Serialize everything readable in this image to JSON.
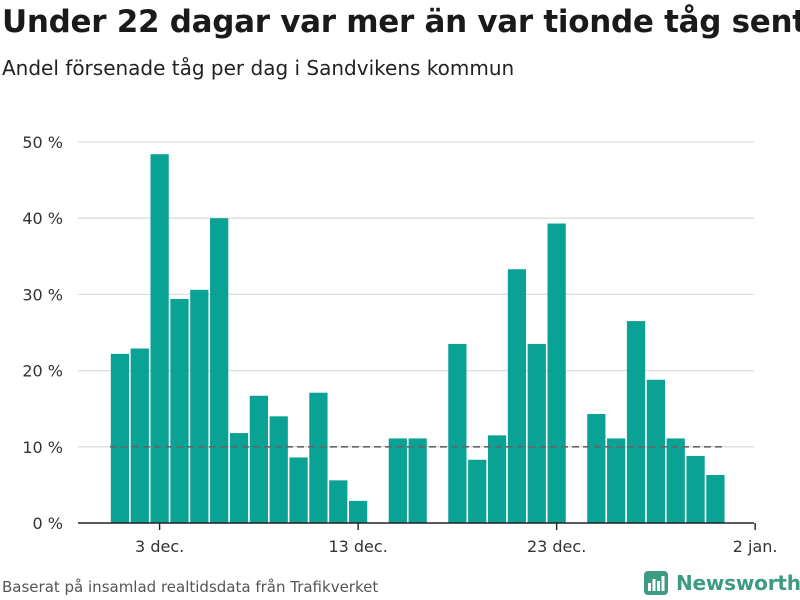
{
  "title": "Under 22 dagar var mer än var tionde tåg sent",
  "subtitle": "Andel försenade tåg per dag i Sandvikens kommun",
  "footer": {
    "source": "Baserat på insamlad realtidsdata från Trafikverket",
    "brand": "Newsworthy",
    "brand_icon": "bar-chart-logo-icon"
  },
  "colors": {
    "bar": "#0aa295",
    "reference_line": "#666666",
    "grid": "#dddddd",
    "brand": "#3d9b84"
  },
  "chart_data": {
    "type": "bar",
    "x": [
      "2018-12-01",
      "2018-12-02",
      "2018-12-03",
      "2018-12-04",
      "2018-12-05",
      "2018-12-06",
      "2018-12-07",
      "2018-12-08",
      "2018-12-09",
      "2018-12-10",
      "2018-12-11",
      "2018-12-12",
      "2018-12-13",
      "2018-12-14",
      "2018-12-15",
      "2018-12-16",
      "2018-12-17",
      "2018-12-18",
      "2018-12-19",
      "2018-12-20",
      "2018-12-21",
      "2018-12-22",
      "2018-12-23",
      "2018-12-24",
      "2018-12-25",
      "2018-12-26",
      "2018-12-27",
      "2018-12-28",
      "2018-12-29",
      "2018-12-30",
      "2018-12-31"
    ],
    "values": [
      22.2,
      22.9,
      48.4,
      29.4,
      30.6,
      40.0,
      11.8,
      16.7,
      14.0,
      8.6,
      17.1,
      5.6,
      2.9,
      null,
      11.1,
      11.1,
      null,
      23.5,
      8.3,
      11.5,
      33.3,
      23.5,
      39.3,
      null,
      14.3,
      11.1,
      26.5,
      18.8,
      11.1,
      8.8,
      6.3
    ],
    "reference_value": 10,
    "ylim": [
      0,
      50
    ],
    "yticks": [
      0,
      10,
      20,
      30,
      40,
      50
    ],
    "ytick_labels": [
      "0 %",
      "10 %",
      "20 %",
      "30 %",
      "40 %",
      "50 %"
    ],
    "xticks": [
      "2018-12-03",
      "2018-12-13",
      "2018-12-23",
      "2019-01-02"
    ],
    "xtick_labels": [
      "3 dec.",
      "13 dec.",
      "23 dec.",
      "2 jan."
    ],
    "grid": true,
    "xlabel": "",
    "ylabel": ""
  }
}
